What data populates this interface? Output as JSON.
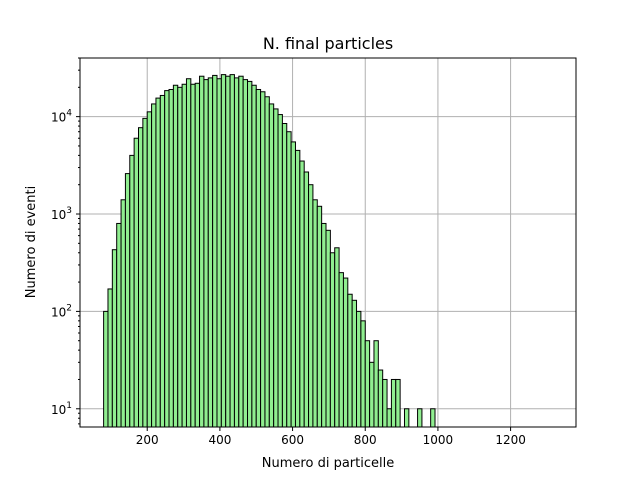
{
  "chart_data": {
    "type": "bar",
    "title": "N. final particles",
    "xlabel": "Numero di particelle",
    "ylabel": "Numero di eventi",
    "y_scale": "log",
    "grid": true,
    "xlim": [
      15,
      1380
    ],
    "ylim": [
      6.5,
      40000
    ],
    "x_ticks": [
      200,
      400,
      600,
      800,
      1000,
      1200
    ],
    "y_ticks": [
      {
        "value": 10,
        "base": "10",
        "exp": "1"
      },
      {
        "value": 100,
        "base": "10",
        "exp": "2"
      },
      {
        "value": 1000,
        "base": "10",
        "exp": "3"
      },
      {
        "value": 10000,
        "base": "10",
        "exp": "4"
      }
    ],
    "bin_start": 80,
    "bin_width": 12,
    "counts": [
      100,
      170,
      430,
      800,
      1400,
      2600,
      4000,
      6000,
      7700,
      9600,
      11200,
      13500,
      15500,
      16500,
      18500,
      19000,
      21000,
      20000,
      21500,
      24500,
      21500,
      22000,
      26000,
      24000,
      25000,
      26500,
      24500,
      27000,
      26000,
      27000,
      25000,
      26000,
      24000,
      23000,
      21000,
      19000,
      18000,
      16000,
      13500,
      12000,
      10500,
      8500,
      7000,
      5500,
      4500,
      3500,
      2700,
      2000,
      1400,
      1200,
      800,
      680,
      400,
      450,
      250,
      220,
      150,
      130,
      100,
      80,
      50,
      30,
      50,
      25,
      20,
      10,
      20,
      20,
      0,
      10,
      0,
      0,
      10,
      0,
      0,
      10
    ],
    "bar_color": "#90ee90",
    "edge_color": "#000000",
    "grid_color": "#b0b0b0"
  }
}
